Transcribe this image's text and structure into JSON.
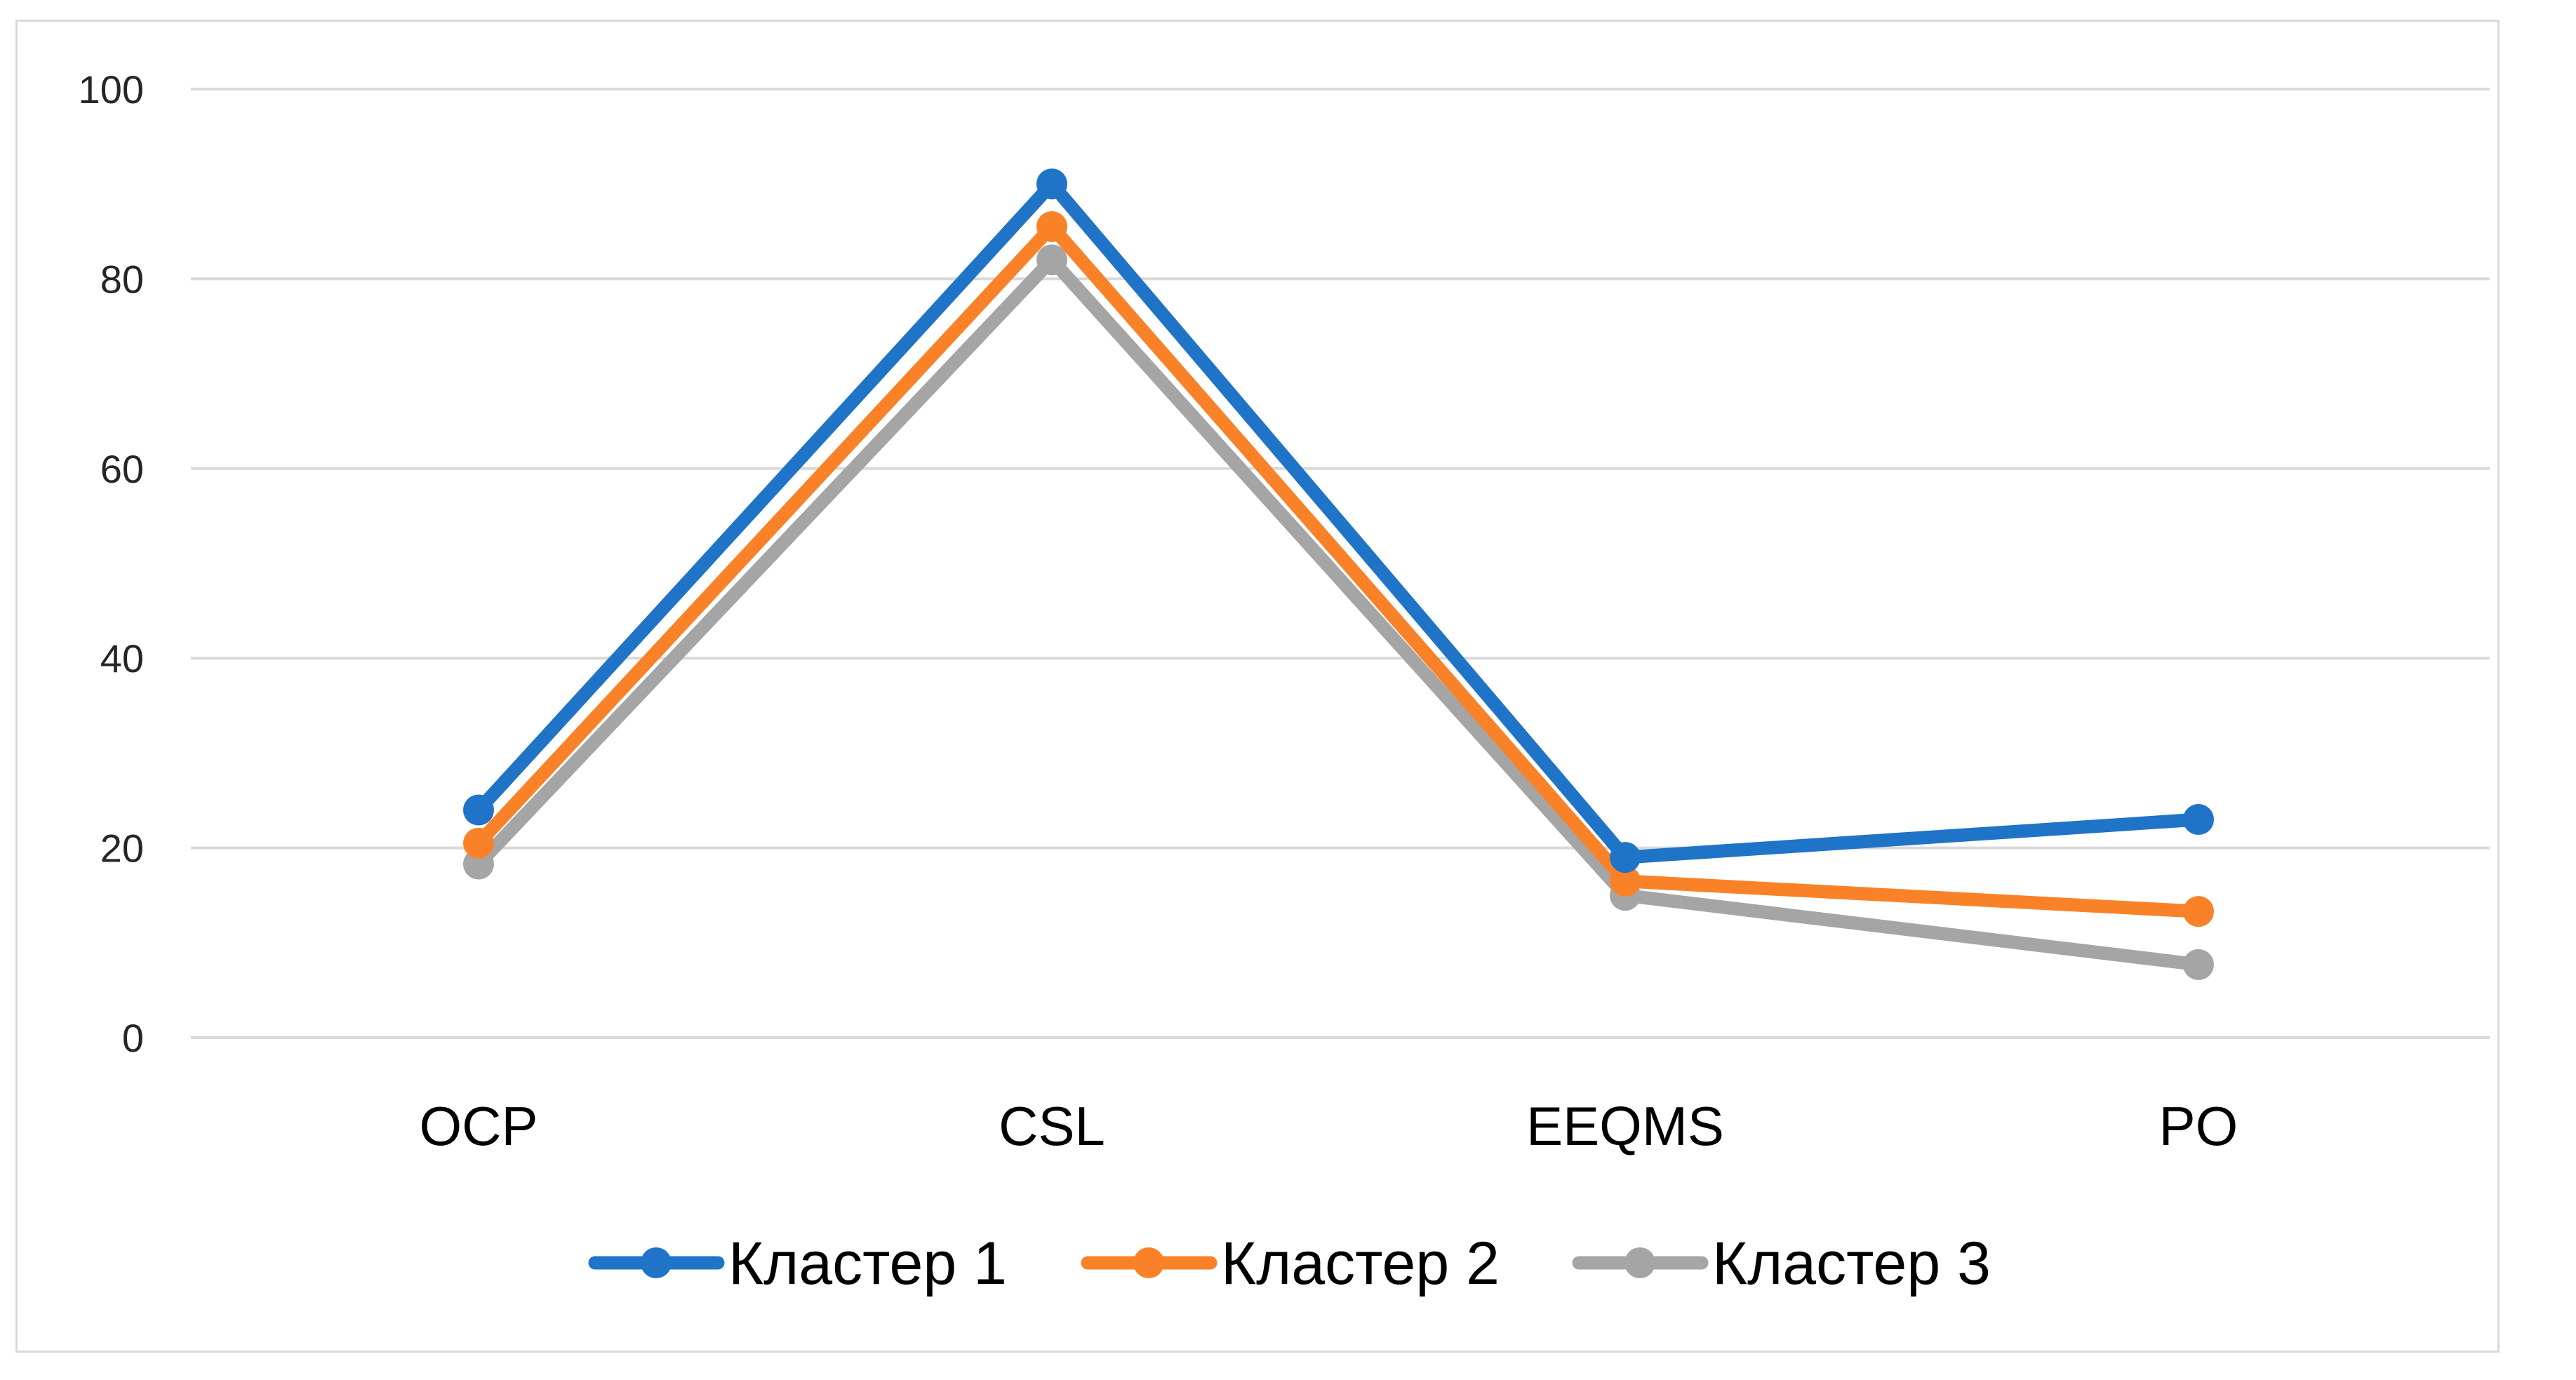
{
  "chart_data": {
    "type": "line",
    "title": "",
    "xlabel": "",
    "ylabel": "",
    "categories": [
      "OCP",
      "CSL",
      "EEQMS",
      "PO"
    ],
    "ylim": [
      0,
      100
    ],
    "yticks": [
      0,
      20,
      40,
      60,
      80,
      100
    ],
    "grid": true,
    "legend_position": "bottom",
    "series": [
      {
        "name": "Кластер 1",
        "color": "#1f74c8",
        "values": [
          24,
          90,
          19,
          23
        ]
      },
      {
        "name": "Кластер 2",
        "color": "#f98228",
        "values": [
          20.5,
          85.5,
          16.5,
          13.3
        ]
      },
      {
        "name": "Кластер 3",
        "color": "#a5a5a5",
        "values": [
          18.3,
          82,
          15,
          7.7
        ]
      }
    ]
  }
}
